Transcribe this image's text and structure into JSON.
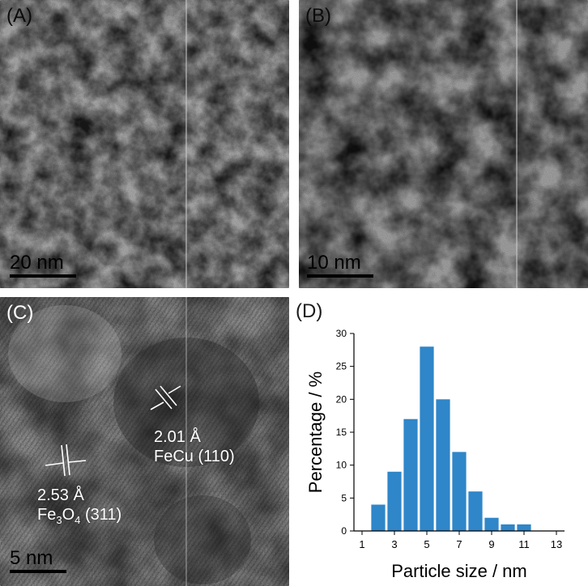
{
  "panels": {
    "a": {
      "label": "(A)",
      "scale_text": "20 nm"
    },
    "b": {
      "label": "(B)",
      "scale_text": "10 nm"
    },
    "c": {
      "label": "(C)",
      "scale_text": "5 nm",
      "lattice_1": {
        "spacing": "2.01 Å",
        "phase": "FeCu (110)"
      },
      "lattice_2": {
        "spacing": "2.53 Å",
        "phase_main": "Fe",
        "phase_sub3": "3",
        "phase_mid": "O",
        "phase_sub4": "4",
        "phase_hkl": "(311)"
      }
    },
    "d": {
      "label": "(D)"
    }
  },
  "chart_data": {
    "type": "bar",
    "x": [
      2,
      3,
      4,
      5,
      6,
      7,
      8,
      9,
      10,
      11
    ],
    "values": [
      4,
      9,
      17,
      28,
      20,
      12,
      6,
      2,
      1,
      1
    ],
    "xlabel": "Particle size / nm",
    "ylabel": "Percentage / %",
    "xlim": [
      0.5,
      13.5
    ],
    "ylim": [
      0,
      30
    ],
    "xticks": [
      1,
      3,
      5,
      7,
      9,
      11,
      13
    ],
    "yticks": [
      0,
      5,
      10,
      15,
      20,
      25,
      30
    ],
    "bar_color": "#2f86c8",
    "grid": false
  }
}
